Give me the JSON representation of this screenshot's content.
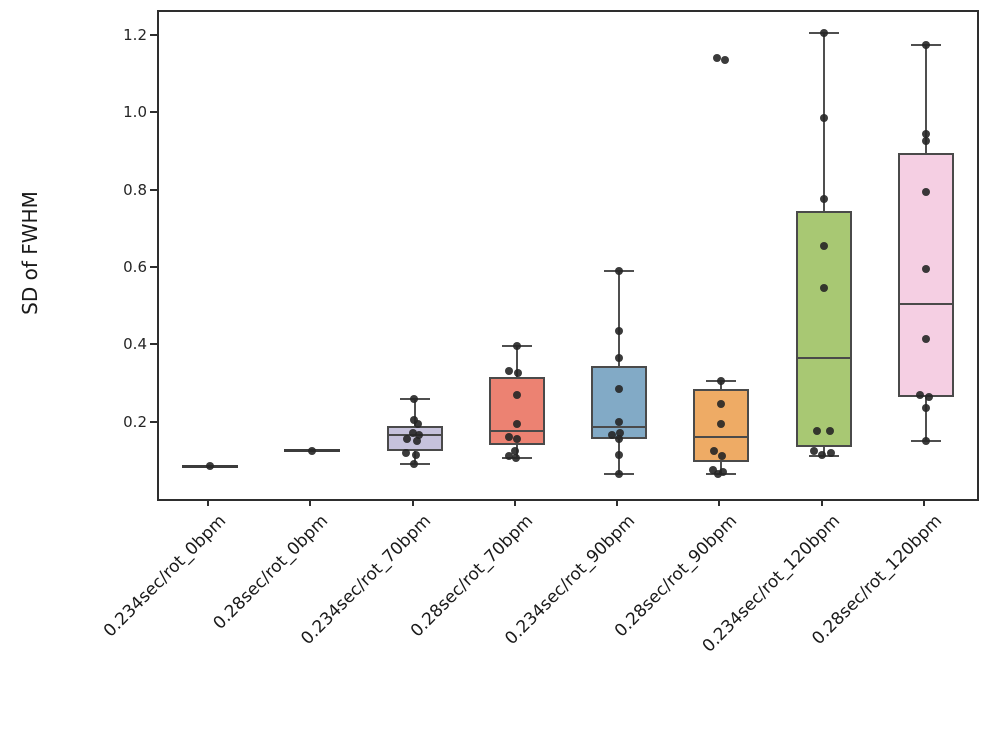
{
  "chart_data": {
    "type": "boxplot",
    "title": "",
    "xlabel": "",
    "ylabel": "SD of FWHM",
    "ylim": [
      0.005,
      1.265
    ],
    "yticks": [
      0.2,
      0.4,
      0.6,
      0.8,
      1.0,
      1.2
    ],
    "grid": false,
    "legend": "none",
    "categories": [
      "0.234sec/rot_0bpm",
      "0.28sec/rot_0bpm",
      "0.234sec/rot_70bpm",
      "0.28sec/rot_70bpm",
      "0.234sec/rot_90bpm",
      "0.28sec/rot_90bpm",
      "0.234sec/rot_120bpm",
      "0.28sec/rot_120bpm"
    ],
    "series": [
      {
        "category": "0.234sec/rot_0bpm",
        "color": "#9ad0c5",
        "stats": {
          "low": 0.09,
          "q1": 0.09,
          "median": 0.09,
          "q3": 0.09,
          "high": 0.09
        },
        "points": [
          {
            "v": 0.09,
            "j": 0
          }
        ]
      },
      {
        "category": "0.28sec/rot_0bpm",
        "color": "#f6f4c0",
        "stats": {
          "low": 0.13,
          "q1": 0.13,
          "median": 0.13,
          "q3": 0.13,
          "high": 0.13
        },
        "points": [
          {
            "v": 0.13,
            "j": 0
          }
        ]
      },
      {
        "category": "0.234sec/rot_70bpm",
        "color": "#c6c2dc",
        "stats": {
          "low": 0.095,
          "q1": 0.13,
          "median": 0.17,
          "q3": 0.195,
          "high": 0.265
        },
        "points": [
          {
            "v": 0.265,
            "j": -1
          },
          {
            "v": 0.21,
            "j": -1
          },
          {
            "v": 0.2,
            "j": 3
          },
          {
            "v": 0.175,
            "j": -2
          },
          {
            "v": 0.17,
            "j": 4
          },
          {
            "v": 0.16,
            "j": -8
          },
          {
            "v": 0.155,
            "j": 2
          },
          {
            "v": 0.125,
            "j": -9
          },
          {
            "v": 0.12,
            "j": 1
          },
          {
            "v": 0.095,
            "j": -1
          }
        ]
      },
      {
        "category": "0.28sec/rot_70bpm",
        "color": "#ec8272",
        "stats": {
          "low": 0.11,
          "q1": 0.145,
          "median": 0.18,
          "q3": 0.32,
          "high": 0.4
        },
        "points": [
          {
            "v": 0.4,
            "j": 0
          },
          {
            "v": 0.335,
            "j": -8
          },
          {
            "v": 0.33,
            "j": 1
          },
          {
            "v": 0.275,
            "j": 0
          },
          {
            "v": 0.2,
            "j": 0
          },
          {
            "v": 0.165,
            "j": -8
          },
          {
            "v": 0.16,
            "j": 0
          },
          {
            "v": 0.13,
            "j": -2
          },
          {
            "v": 0.115,
            "j": -8
          },
          {
            "v": 0.11,
            "j": -1
          }
        ]
      },
      {
        "category": "0.234sec/rot_90bpm",
        "color": "#82aac6",
        "stats": {
          "low": 0.07,
          "q1": 0.16,
          "median": 0.19,
          "q3": 0.35,
          "high": 0.595
        },
        "points": [
          {
            "v": 0.595,
            "j": 0
          },
          {
            "v": 0.44,
            "j": 0
          },
          {
            "v": 0.37,
            "j": 0
          },
          {
            "v": 0.29,
            "j": 0
          },
          {
            "v": 0.205,
            "j": 0
          },
          {
            "v": 0.175,
            "j": 1
          },
          {
            "v": 0.17,
            "j": -7
          },
          {
            "v": 0.16,
            "j": 0
          },
          {
            "v": 0.12,
            "j": 0
          },
          {
            "v": 0.07,
            "j": 0
          }
        ]
      },
      {
        "category": "0.28sec/rot_90bpm",
        "color": "#eeab65",
        "stats": {
          "low": 0.07,
          "q1": 0.1,
          "median": 0.165,
          "q3": 0.29,
          "high": 0.31
        },
        "points": [
          {
            "v": 1.145,
            "j": -4
          },
          {
            "v": 1.14,
            "j": 4
          },
          {
            "v": 0.31,
            "j": 0
          },
          {
            "v": 0.25,
            "j": 0
          },
          {
            "v": 0.2,
            "j": 0
          },
          {
            "v": 0.13,
            "j": -7
          },
          {
            "v": 0.115,
            "j": 1
          },
          {
            "v": 0.08,
            "j": -8
          },
          {
            "v": 0.075,
            "j": 2
          },
          {
            "v": 0.07,
            "j": -3
          }
        ]
      },
      {
        "category": "0.234sec/rot_120bpm",
        "color": "#a8c873",
        "stats": {
          "low": 0.115,
          "q1": 0.14,
          "median": 0.37,
          "q3": 0.75,
          "high": 1.21
        },
        "points": [
          {
            "v": 1.21,
            "j": 0
          },
          {
            "v": 0.99,
            "j": 0
          },
          {
            "v": 0.78,
            "j": 0
          },
          {
            "v": 0.66,
            "j": 0
          },
          {
            "v": 0.55,
            "j": 0
          },
          {
            "v": 0.18,
            "j": -7
          },
          {
            "v": 0.18,
            "j": 6
          },
          {
            "v": 0.13,
            "j": -10
          },
          {
            "v": 0.12,
            "j": -2
          },
          {
            "v": 0.125,
            "j": 7
          }
        ]
      },
      {
        "category": "0.28sec/rot_120bpm",
        "color": "#f5cfe3",
        "stats": {
          "low": 0.155,
          "q1": 0.27,
          "median": 0.51,
          "q3": 0.9,
          "high": 1.18
        },
        "points": [
          {
            "v": 1.18,
            "j": 0
          },
          {
            "v": 0.95,
            "j": 0
          },
          {
            "v": 0.93,
            "j": 0
          },
          {
            "v": 0.8,
            "j": 0
          },
          {
            "v": 0.6,
            "j": 0
          },
          {
            "v": 0.42,
            "j": 0
          },
          {
            "v": 0.275,
            "j": -6
          },
          {
            "v": 0.27,
            "j": 3
          },
          {
            "v": 0.24,
            "j": 0
          },
          {
            "v": 0.155,
            "j": 0
          }
        ]
      }
    ],
    "colors": {
      "frame": "#2e2e2e",
      "box_edge": "#4a4a4a",
      "whisker": "#4f4f4f",
      "dot": "#262626",
      "background": "#ffffff"
    }
  }
}
